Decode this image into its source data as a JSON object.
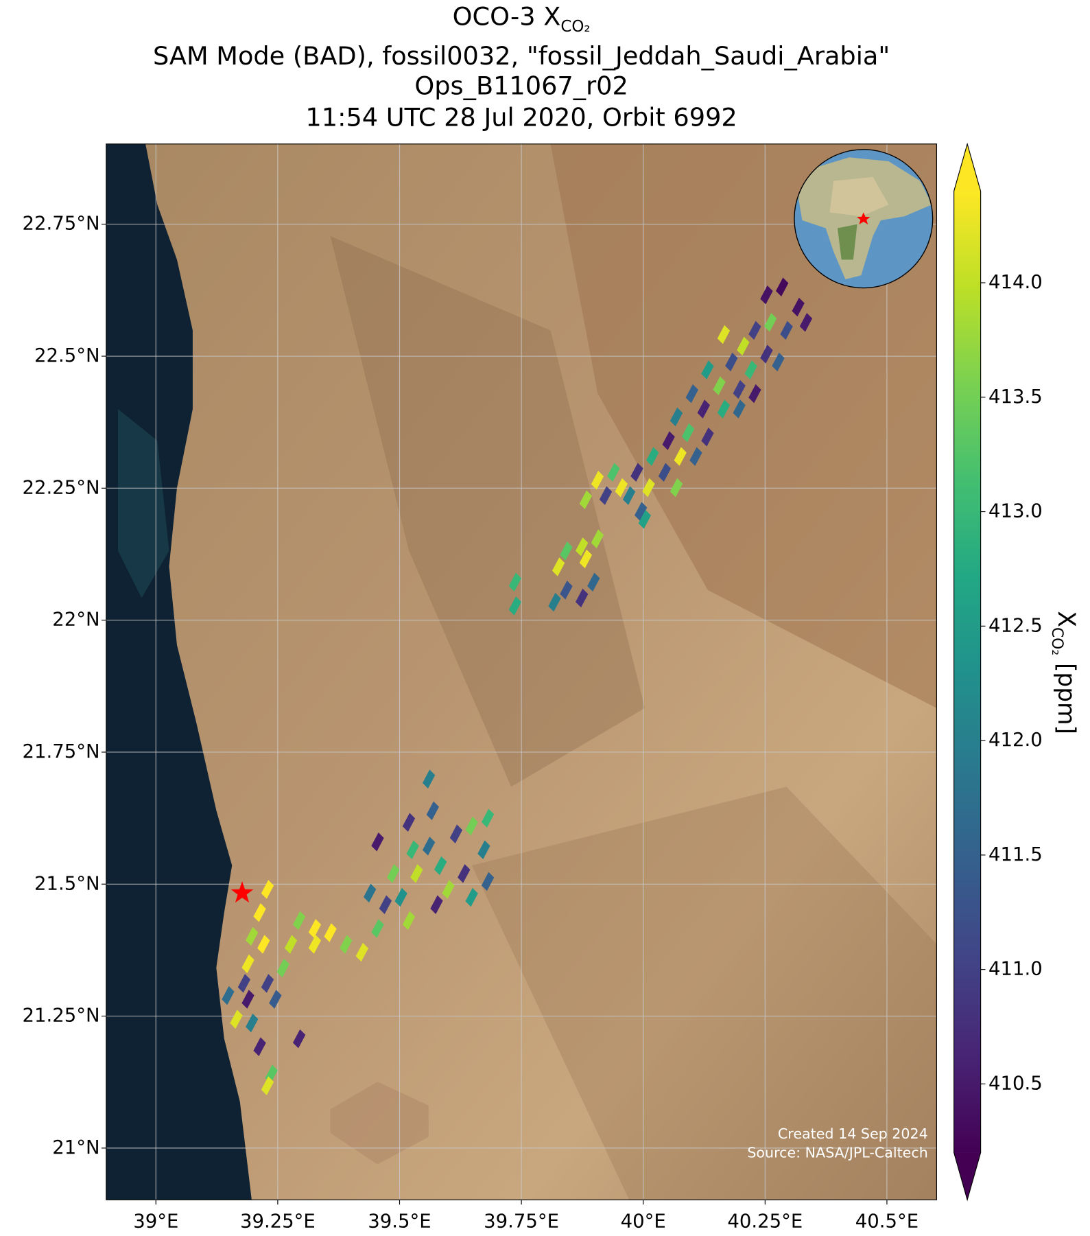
{
  "chart_data": {
    "type": "map",
    "title": {
      "line1": "OCO-3 X",
      "line1_sub": "CO₂",
      "lines": [
        "SAM Mode (BAD), fossil0032, \"fossil_Jeddah_Saudi_Arabia\"",
        "Ops_B11067_r02",
        "11:54 UTC 28 Jul 2020, Orbit 6992"
      ]
    },
    "xlim": [
      38.898,
      40.602
    ],
    "ylim": [
      20.902,
      22.902
    ],
    "xticks": [
      {
        "value": 39,
        "label": "39°E"
      },
      {
        "value": 39.25,
        "label": "39.25°E"
      },
      {
        "value": 39.5,
        "label": "39.5°E"
      },
      {
        "value": 39.75,
        "label": "39.75°E"
      },
      {
        "value": 40,
        "label": "40°E"
      },
      {
        "value": 40.25,
        "label": "40.25°E"
      },
      {
        "value": 40.5,
        "label": "40.5°E"
      }
    ],
    "yticks": [
      {
        "value": 21,
        "label": "21°N"
      },
      {
        "value": 21.25,
        "label": "21.25°N"
      },
      {
        "value": 21.5,
        "label": "21.5°N"
      },
      {
        "value": 21.75,
        "label": "21.75°N"
      },
      {
        "value": 22,
        "label": "22°N"
      },
      {
        "value": 22.25,
        "label": "22.25°N"
      },
      {
        "value": 22.5,
        "label": "22.5°N"
      },
      {
        "value": 22.75,
        "label": "22.75°N"
      }
    ],
    "grid": true,
    "colormap": "viridis",
    "clim": [
      410.2,
      414.4
    ],
    "extend": "both",
    "cticks": [
      410.5,
      {
        "value": 411,
        "label": "411.0"
      },
      411.5,
      {
        "value": 412,
        "label": "412.0"
      },
      412.5,
      {
        "value": 413,
        "label": "413.0"
      },
      413.5,
      {
        "value": 414,
        "label": "414.0"
      }
    ],
    "colorbar_label": {
      "prefix": "X",
      "sub": "CO₂",
      "suffix": " [ppm]"
    },
    "target": {
      "lon": 39.177,
      "lat": 21.483,
      "color": "#ff0000"
    },
    "soundings": {
      "lon": [
        40.253,
        40.285,
        40.318,
        40.334,
        40.229,
        40.261,
        40.294,
        40.165,
        40.205,
        40.181,
        40.221,
        40.253,
        40.277,
        40.132,
        40.156,
        40.197,
        40.229,
        40.1,
        40.124,
        40.165,
        40.197,
        40.068,
        40.092,
        40.132,
        40.052,
        40.076,
        40.108,
        40.019,
        40.044,
        40.068,
        39.987,
        40.011,
        39.971,
        39.995,
        39.939,
        39.955,
        39.923,
        39.906,
        39.882,
        40.003,
        39.906,
        39.874,
        39.842,
        39.826,
        39.882,
        39.737,
        39.737,
        39.842,
        39.818,
        39.898,
        39.874,
        39.56,
        39.568,
        39.519,
        39.455,
        39.527,
        39.56,
        39.584,
        39.616,
        39.648,
        39.681,
        39.673,
        39.681,
        39.632,
        39.6,
        39.648,
        39.576,
        39.535,
        39.487,
        39.503,
        39.439,
        39.471,
        39.519,
        39.455,
        39.423,
        39.39,
        39.358,
        39.326,
        39.326,
        39.294,
        39.277,
        39.261,
        39.229,
        39.213,
        39.221,
        39.197,
        39.189,
        39.229,
        39.245,
        39.181,
        39.148,
        39.165,
        39.197,
        39.189,
        39.213,
        39.294,
        39.237,
        39.229
      ],
      "lat": [
        22.616,
        22.631,
        22.593,
        22.564,
        22.549,
        22.564,
        22.549,
        22.541,
        22.519,
        22.489,
        22.474,
        22.504,
        22.489,
        22.474,
        22.444,
        22.437,
        22.429,
        22.429,
        22.4,
        22.4,
        22.4,
        22.385,
        22.355,
        22.347,
        22.34,
        22.31,
        22.31,
        22.31,
        22.28,
        22.251,
        22.28,
        22.251,
        22.236,
        22.206,
        22.28,
        22.251,
        22.236,
        22.265,
        22.228,
        22.191,
        22.154,
        22.139,
        22.131,
        22.101,
        22.116,
        22.072,
        22.027,
        22.057,
        22.034,
        22.072,
        22.042,
        21.699,
        21.639,
        21.617,
        21.58,
        21.565,
        21.572,
        21.535,
        21.595,
        21.61,
        21.625,
        21.565,
        21.505,
        21.52,
        21.49,
        21.475,
        21.461,
        21.52,
        21.52,
        21.475,
        21.483,
        21.461,
        21.431,
        21.416,
        21.371,
        21.386,
        21.408,
        21.416,
        21.386,
        21.431,
        21.386,
        21.341,
        21.49,
        21.446,
        21.386,
        21.401,
        21.349,
        21.312,
        21.282,
        21.312,
        21.289,
        21.244,
        21.237,
        21.282,
        21.192,
        21.207,
        21.14,
        21.118
      ],
      "xco2": [
        410.4,
        410.3,
        410.4,
        410.5,
        411.0,
        413.5,
        411.2,
        414.2,
        414.0,
        411.2,
        413.0,
        410.8,
        411.5,
        412.5,
        413.6,
        411.0,
        410.5,
        411.5,
        410.6,
        412.8,
        411.6,
        412.0,
        413.2,
        410.8,
        410.5,
        414.3,
        411.5,
        412.8,
        411.2,
        413.6,
        410.8,
        414.2,
        412.0,
        411.5,
        413.2,
        414.3,
        411.0,
        414.3,
        413.8,
        412.6,
        413.8,
        414.0,
        413.3,
        414.2,
        414.3,
        413.0,
        412.8,
        411.3,
        412.0,
        411.6,
        410.8,
        412.0,
        411.5,
        410.8,
        410.5,
        413.0,
        411.7,
        412.8,
        411.0,
        413.5,
        413.0,
        412.0,
        411.5,
        410.8,
        413.8,
        412.5,
        410.6,
        414.0,
        413.5,
        412.3,
        411.8,
        411.0,
        413.8,
        413.3,
        414.2,
        413.6,
        414.4,
        414.4,
        414.3,
        413.6,
        414.0,
        413.5,
        414.4,
        414.4,
        414.4,
        413.8,
        414.3,
        411.0,
        411.4,
        411.0,
        411.7,
        414.2,
        412.0,
        410.5,
        410.6,
        410.6,
        413.3,
        414.2
      ]
    },
    "credits": [
      "Created 14 Sep 2024",
      "Source: NASA/JPL-Caltech"
    ]
  }
}
